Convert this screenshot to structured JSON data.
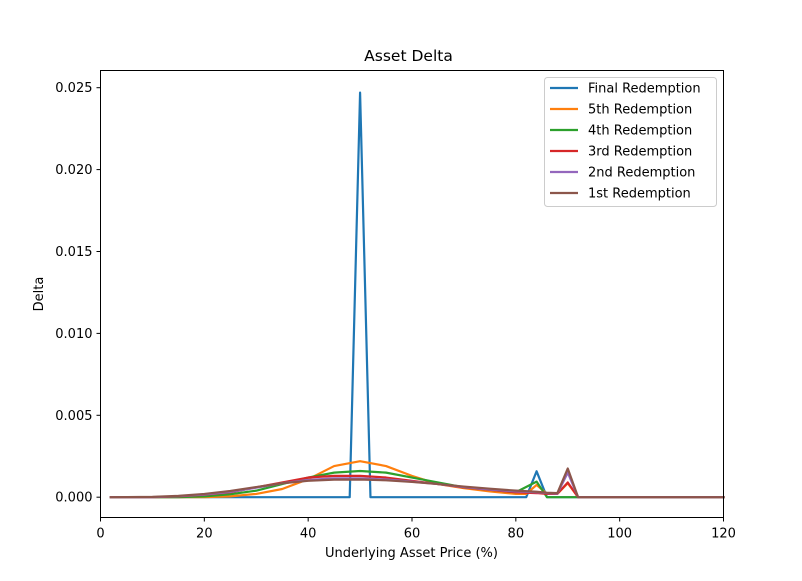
{
  "chart_data": {
    "type": "line",
    "title": "Asset Delta",
    "xlabel": "Underlying Asset Price (%)",
    "ylabel": "Delta",
    "xlim": [
      0,
      120
    ],
    "ylim": [
      -0.00124,
      0.02605
    ],
    "xticks": [
      0,
      20,
      40,
      60,
      80,
      100,
      120
    ],
    "yticks": [
      0.0,
      0.005,
      0.01,
      0.015,
      0.02,
      0.025
    ],
    "ytick_labels": [
      "0.000",
      "0.005",
      "0.010",
      "0.015",
      "0.020",
      "0.025"
    ],
    "grid": false,
    "legend_position": "top-right",
    "series": [
      {
        "name": "Final Redemption",
        "color": "#1f77b4",
        "x": [
          2,
          48,
          48,
          50,
          52,
          52,
          82,
          84,
          86,
          120
        ],
        "y": [
          0.0,
          0.0,
          0.0,
          0.0247,
          0.0,
          0.0,
          0.0,
          0.00158,
          0.0,
          0.0
        ]
      },
      {
        "name": "5th Redemption",
        "color": "#ff7f0e",
        "x": [
          2,
          20,
          25,
          30,
          35,
          40,
          45,
          50,
          55,
          60,
          65,
          70,
          75,
          80,
          82,
          84,
          86,
          88,
          90,
          92,
          120
        ],
        "y": [
          0.0,
          0.0,
          5e-05,
          0.0002,
          0.0005,
          0.0011,
          0.0019,
          0.0022,
          0.0019,
          0.0013,
          0.0008,
          0.00055,
          0.00035,
          0.0002,
          0.0002,
          0.00075,
          0.0002,
          0.0002,
          0.00085,
          0.0,
          0.0
        ]
      },
      {
        "name": "4th Redemption",
        "color": "#2ca02c",
        "x": [
          2,
          15,
          20,
          25,
          30,
          35,
          40,
          45,
          50,
          55,
          60,
          65,
          70,
          75,
          80,
          84,
          86,
          88,
          90,
          92,
          120
        ],
        "y": [
          0.0,
          0.0,
          5e-05,
          0.00018,
          0.0004,
          0.0008,
          0.0012,
          0.0015,
          0.0016,
          0.0015,
          0.0012,
          0.0009,
          0.0006,
          0.00045,
          0.0003,
          0.00095,
          0.0,
          0.0,
          0.0,
          0.0,
          0.0
        ]
      },
      {
        "name": "3rd Redemption",
        "color": "#d62728",
        "x": [
          2,
          10,
          15,
          20,
          25,
          30,
          35,
          40,
          45,
          50,
          55,
          60,
          65,
          70,
          75,
          80,
          84,
          86,
          88,
          90,
          92,
          120
        ],
        "y": [
          0.0,
          0.0,
          5e-05,
          0.00015,
          0.0003,
          0.0006,
          0.0009,
          0.0012,
          0.0013,
          0.0013,
          0.0012,
          0.001,
          0.0008,
          0.0006,
          0.00045,
          0.0003,
          0.00025,
          0.0002,
          0.0002,
          0.0009,
          0.0,
          0.0
        ]
      },
      {
        "name": "2nd Redemption",
        "color": "#9467bd",
        "x": [
          2,
          10,
          15,
          20,
          25,
          30,
          35,
          40,
          45,
          50,
          55,
          60,
          65,
          70,
          75,
          80,
          84,
          86,
          88,
          90,
          92,
          120
        ],
        "y": [
          0.0,
          0.0,
          6e-05,
          0.00016,
          0.00032,
          0.00058,
          0.00085,
          0.00105,
          0.00115,
          0.00115,
          0.00108,
          0.00095,
          0.0008,
          0.00062,
          0.00047,
          0.00035,
          0.0003,
          0.00025,
          0.00022,
          0.0015,
          0.0,
          0.0
        ]
      },
      {
        "name": "1st Redemption",
        "color": "#8c564b",
        "x": [
          2,
          10,
          15,
          20,
          25,
          30,
          35,
          40,
          45,
          50,
          55,
          60,
          65,
          70,
          75,
          80,
          84,
          86,
          88,
          90,
          92,
          120
        ],
        "y": [
          0.0,
          2e-05,
          8e-05,
          0.0002,
          0.00038,
          0.00062,
          0.00085,
          0.001,
          0.00107,
          0.00108,
          0.00103,
          0.00093,
          0.0008,
          0.00065,
          0.00052,
          0.0004,
          0.00033,
          0.00027,
          0.00025,
          0.00175,
          0.0,
          0.0
        ]
      }
    ]
  }
}
